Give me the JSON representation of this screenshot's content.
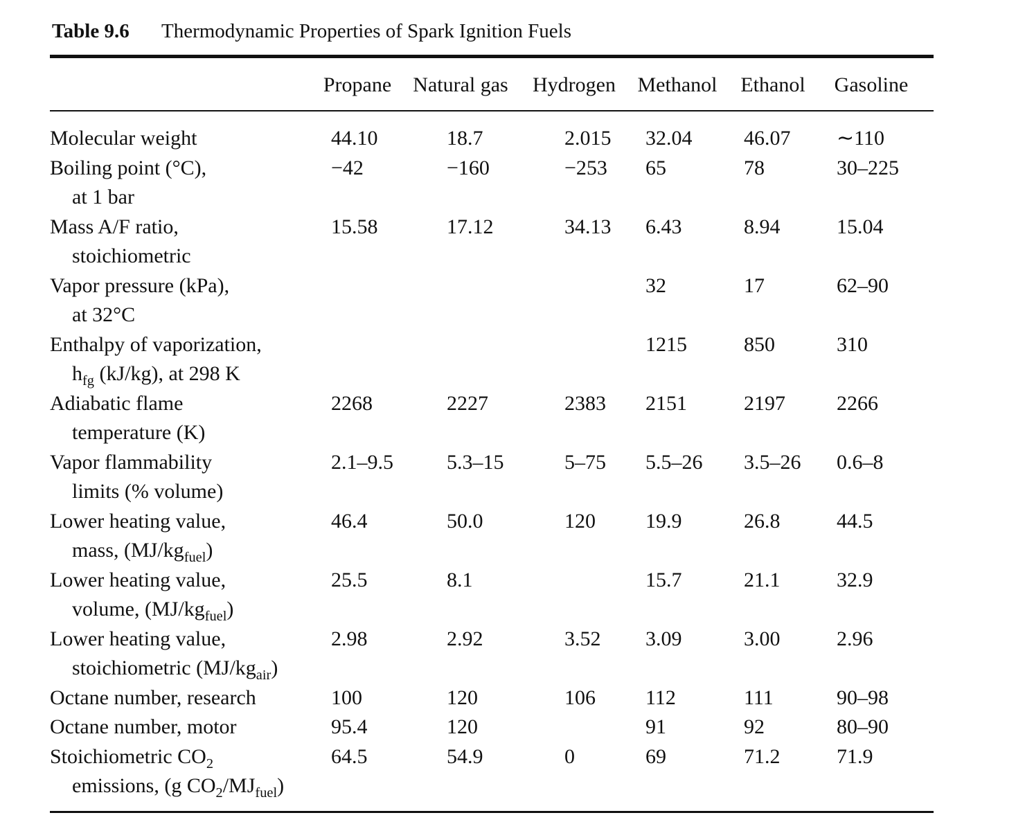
{
  "table_number": "Table 9.6",
  "title": "Thermodynamic Properties of Spark Ignition Fuels",
  "table": {
    "columns": [
      "Propane",
      "Natural gas",
      "Hydrogen",
      "Methanol",
      "Ethanol",
      "Gasoline"
    ],
    "rows": [
      {
        "label": [
          [
            "Molecular weight"
          ]
        ],
        "cells": [
          "44.10",
          "18.7",
          "2.015",
          "32.04",
          "46.07",
          "∼110"
        ]
      },
      {
        "label": [
          [
            "Boiling point (°C),"
          ],
          [
            "at 1 bar"
          ]
        ],
        "cells": [
          "−42",
          "−160",
          "−253",
          "65",
          "78",
          "30–225"
        ]
      },
      {
        "label": [
          [
            "Mass A/F ratio,"
          ],
          [
            "stoichiometric"
          ]
        ],
        "cells": [
          "15.58",
          "17.12",
          "34.13",
          "6.43",
          "8.94",
          "15.04"
        ]
      },
      {
        "label": [
          [
            "Vapor pressure (kPa),"
          ],
          [
            "at 32°C"
          ]
        ],
        "cells": [
          null,
          null,
          null,
          "32",
          "17",
          "62–90"
        ]
      },
      {
        "label": [
          [
            "Enthalpy of vaporization,"
          ],
          [
            "h",
            "fg",
            " (kJ/kg), at 298 K"
          ]
        ],
        "cells": [
          null,
          null,
          null,
          "1215",
          "850",
          "310"
        ]
      },
      {
        "label": [
          [
            "Adiabatic flame"
          ],
          [
            "temperature (K)"
          ]
        ],
        "cells": [
          "2268",
          "2227",
          "2383",
          "2151",
          "2197",
          "2266"
        ]
      },
      {
        "label": [
          [
            "Vapor flammability"
          ],
          [
            "limits (% volume)"
          ]
        ],
        "cells": [
          "2.1–9.5",
          "5.3–15",
          "5–75",
          "5.5–26",
          "3.5–26",
          "0.6–8"
        ]
      },
      {
        "label": [
          [
            "Lower heating value,"
          ],
          [
            "mass, (MJ/kg",
            "fuel",
            ")"
          ]
        ],
        "cells": [
          "46.4",
          "50.0",
          "120",
          "19.9",
          "26.8",
          "44.5"
        ]
      },
      {
        "label": [
          [
            "Lower heating value,"
          ],
          [
            "volume, (MJ/kg",
            "fuel",
            ")"
          ]
        ],
        "cells": [
          "25.5",
          "8.1",
          null,
          "15.7",
          "21.1",
          "32.9"
        ]
      },
      {
        "label": [
          [
            "Lower heating value,"
          ],
          [
            "stoichiometric (MJ/kg",
            "air",
            ")"
          ]
        ],
        "cells": [
          "2.98",
          "2.92",
          "3.52",
          "3.09",
          "3.00",
          "2.96"
        ]
      },
      {
        "label": [
          [
            "Octane number, research"
          ]
        ],
        "cells": [
          "100",
          "120",
          "106",
          "112",
          "111",
          "90–98"
        ]
      },
      {
        "label": [
          [
            "Octane number, motor"
          ]
        ],
        "cells": [
          "95.4",
          "120",
          null,
          "91",
          "92",
          "80–90"
        ]
      },
      {
        "label": [
          [
            "Stoichiometric CO",
            "2"
          ],
          [
            "emissions, (g CO",
            "2",
            "/MJ",
            "fuel",
            ")"
          ]
        ],
        "cells": [
          "64.5",
          "54.9",
          "0",
          "69",
          "71.2",
          "71.9"
        ]
      }
    ]
  }
}
